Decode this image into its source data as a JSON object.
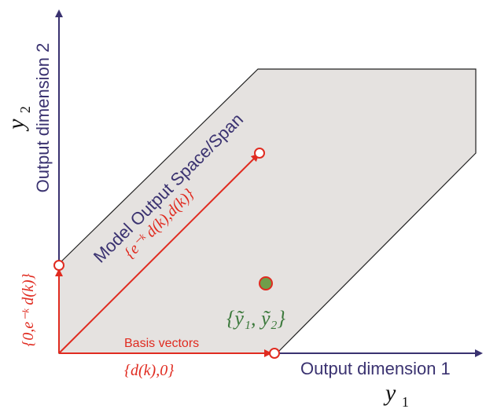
{
  "axes": {
    "y_axis_label": "Output dimension 2",
    "y_axis_symbol": "y",
    "y_axis_subscript": "2",
    "x_axis_label": "Output dimension 1",
    "x_axis_symbol": "y",
    "x_axis_subscript": "1"
  },
  "region": {
    "label": "Model Output Space/Span"
  },
  "labels": {
    "basis_vectors": "Basis vectors",
    "vector_x": "{d(k),0}",
    "vector_y": "{0,e⁻ᵏ d(k)}",
    "vector_diag": "{e⁻ᵏ d(k),d(k)}",
    "measured_point": "{ỹ₁, ỹ₂}"
  },
  "colors": {
    "axis": "#3a3270",
    "region_fill": "#e5e2e0",
    "region_stroke": "#222222",
    "vector": "#e02b20",
    "region_text": "#3a3270",
    "point_fill": "#6f9e4a",
    "point_text": "#3d7a3d"
  }
}
